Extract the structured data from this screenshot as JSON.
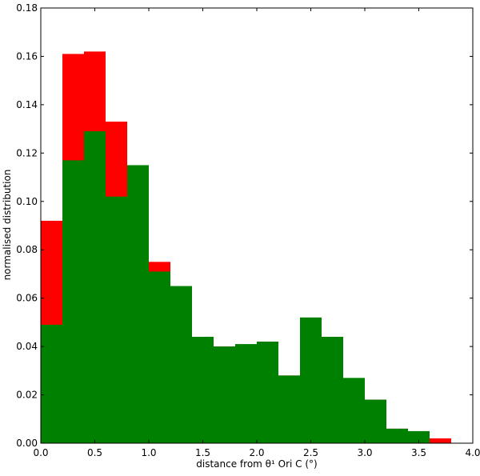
{
  "chart_data": {
    "type": "bar",
    "title": "",
    "xlabel": "distance from θ¹ Ori C (°)",
    "ylabel": "normalised distribution",
    "xlim": [
      0.0,
      4.0
    ],
    "ylim": [
      0.0,
      0.18
    ],
    "grid": false,
    "legend": null,
    "bin_width": 0.2,
    "bin_starts": [
      0.0,
      0.2,
      0.4,
      0.6,
      0.8,
      1.0,
      1.2,
      1.4,
      1.6,
      1.8,
      2.0,
      2.2,
      2.4,
      2.6,
      2.8,
      3.0,
      3.2,
      3.4,
      3.6
    ],
    "series": [
      {
        "color": "#ff0000",
        "values": [
          0.092,
          0.161,
          0.162,
          0.133,
          0.11,
          0.075,
          0.06,
          0.044,
          0.04,
          0.037,
          0.042,
          0.028,
          0.047,
          0.044,
          0.023,
          0.018,
          0.006,
          0.004,
          0.002
        ]
      },
      {
        "color": "#008000",
        "values": [
          0.049,
          0.117,
          0.129,
          0.102,
          0.115,
          0.071,
          0.065,
          0.044,
          0.04,
          0.041,
          0.042,
          0.028,
          0.052,
          0.044,
          0.027,
          0.018,
          0.006,
          0.005,
          0.0
        ]
      }
    ],
    "xticks": [
      "0.0",
      "0.5",
      "1.0",
      "1.5",
      "2.0",
      "2.5",
      "3.0",
      "3.5",
      "4.0"
    ],
    "yticks": [
      "0.00",
      "0.02",
      "0.04",
      "0.06",
      "0.08",
      "0.10",
      "0.12",
      "0.14",
      "0.16",
      "0.18"
    ]
  }
}
